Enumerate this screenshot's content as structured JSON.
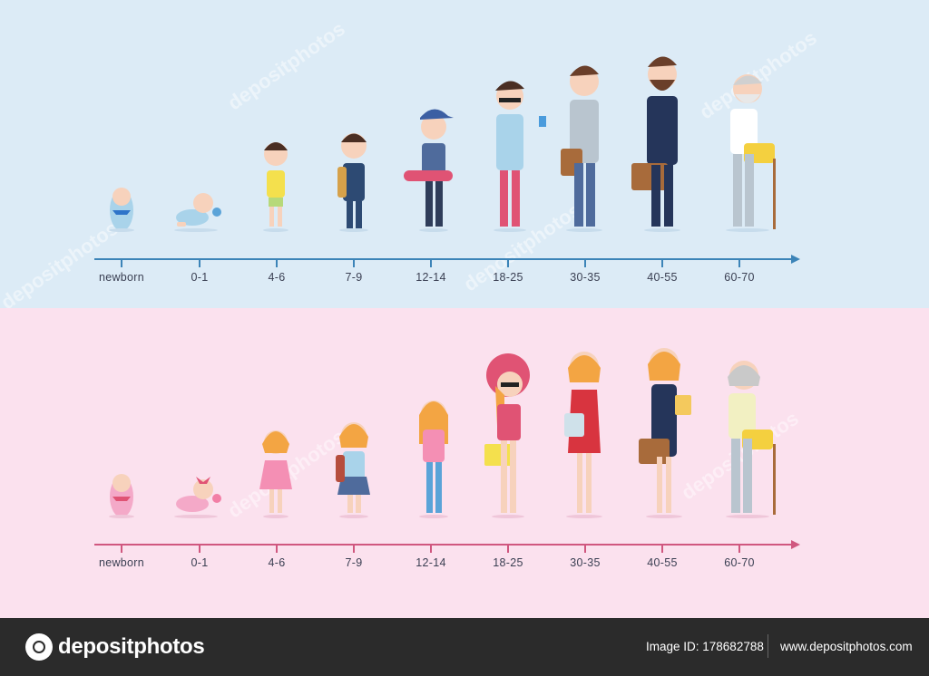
{
  "male_row": {
    "ages": [
      "newborn",
      "0-1",
      "4-6",
      "7-9",
      "12-14",
      "18-25",
      "30-35",
      "40-55",
      "60-70"
    ],
    "axis_color": "#3c84b8"
  },
  "female_row": {
    "ages": [
      "newborn",
      "0-1",
      "4-6",
      "7-9",
      "12-14",
      "18-25",
      "30-35",
      "40-55",
      "60-70"
    ],
    "axis_color": "#d0577f"
  },
  "watermark_text": "depositphotos",
  "footer": {
    "logo_text": "depositphotos",
    "image_id": "Image ID: 178682788",
    "site": "www.depositphotos.com"
  }
}
